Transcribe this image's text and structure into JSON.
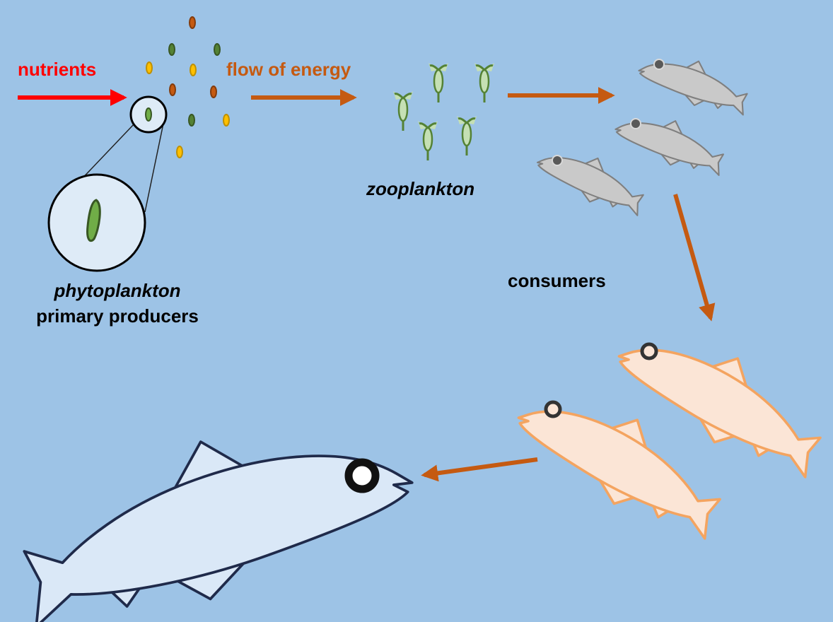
{
  "labels": {
    "nutrients": "nutrients",
    "flow_of_energy": "flow of energy",
    "zooplankton": "zooplankton",
    "phytoplankton": "phytoplankton",
    "primary_producers": "primary producers",
    "consumers": "consumers"
  }
}
